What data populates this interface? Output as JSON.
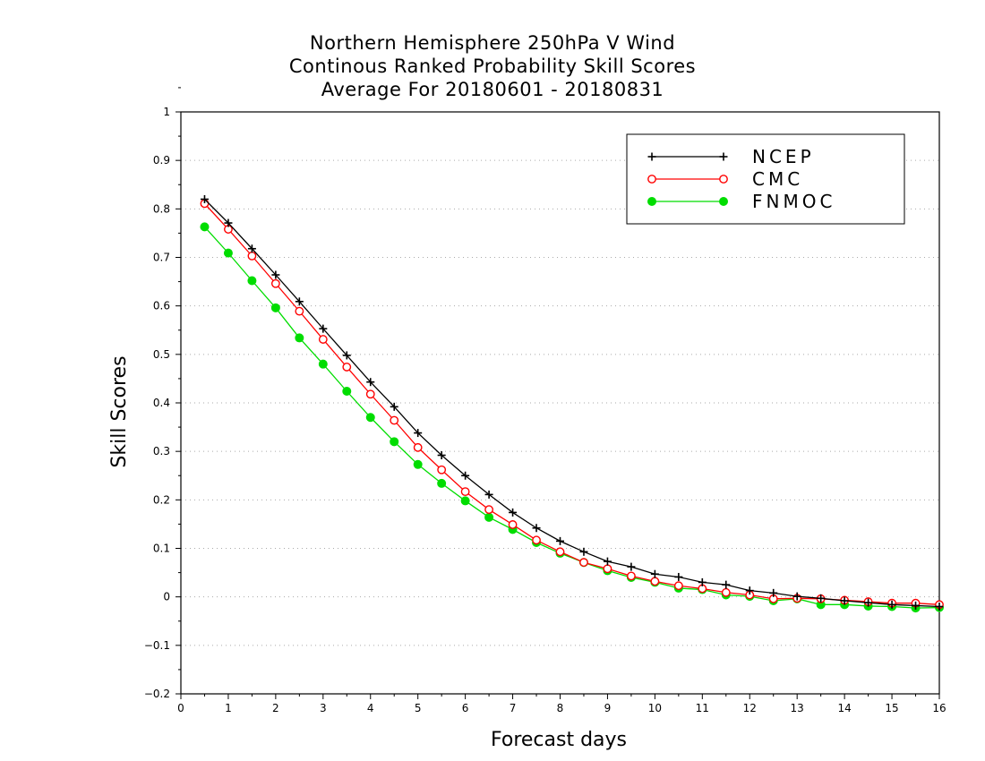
{
  "chart_data": {
    "type": "line",
    "title": [
      "Northern Hemisphere 250hPa V Wind",
      "Continous Ranked Probability Skill Scores",
      "Average For 20180601 - 20180831"
    ],
    "xlabel": "Forecast days",
    "ylabel": "Skill Scores",
    "xlim": [
      0,
      16
    ],
    "ylim": [
      -0.2,
      1
    ],
    "xticks": [
      "0",
      "1",
      "2",
      "3",
      "4",
      "5",
      "6",
      "7",
      "8",
      "9",
      "10",
      "11",
      "12",
      "13",
      "14",
      "15",
      "16"
    ],
    "yticks": [
      "−0.2",
      "−0.1",
      "0",
      "0.1",
      "0.2",
      "0.3",
      "0.4",
      "0.5",
      "0.6",
      "0.7",
      "0.8",
      "0.9",
      "1"
    ],
    "grid": "horizontal-dotted",
    "legend_position": "top-right",
    "x": [
      0.5,
      1,
      1.5,
      2,
      2.5,
      3,
      3.5,
      4,
      4.5,
      5,
      5.5,
      6,
      6.5,
      7,
      7.5,
      8,
      8.5,
      9,
      9.5,
      10,
      10.5,
      11,
      11.5,
      12,
      12.5,
      13,
      13.5,
      14,
      14.5,
      15,
      15.5,
      16
    ],
    "series": [
      {
        "name": "NCEP",
        "color": "#000000",
        "marker": "plus",
        "values": [
          0.82,
          0.771,
          0.718,
          0.664,
          0.609,
          0.553,
          0.498,
          0.443,
          0.392,
          0.338,
          0.292,
          0.25,
          0.211,
          0.174,
          0.142,
          0.115,
          0.093,
          0.073,
          0.062,
          0.047,
          0.041,
          0.03,
          0.025,
          0.013,
          0.008,
          0.001,
          -0.003,
          -0.008,
          -0.012,
          -0.016,
          -0.018,
          -0.02
        ]
      },
      {
        "name": "CMC",
        "color": "#ff0000",
        "marker": "open-circle",
        "values": [
          0.811,
          0.758,
          0.703,
          0.646,
          0.589,
          0.531,
          0.474,
          0.418,
          0.364,
          0.308,
          0.262,
          0.217,
          0.18,
          0.149,
          0.117,
          0.093,
          0.071,
          0.058,
          0.043,
          0.032,
          0.023,
          0.017,
          0.009,
          0.004,
          -0.004,
          -0.003,
          -0.004,
          -0.007,
          -0.01,
          -0.013,
          -0.013,
          -0.016
        ]
      },
      {
        "name": "FNMOC",
        "color": "#00dd00",
        "marker": "filled-circle",
        "values": [
          0.763,
          0.709,
          0.652,
          0.596,
          0.534,
          0.48,
          0.424,
          0.37,
          0.32,
          0.273,
          0.234,
          0.198,
          0.164,
          0.139,
          0.112,
          0.09,
          0.071,
          0.054,
          0.04,
          0.03,
          0.018,
          0.015,
          0.004,
          0.001,
          -0.008,
          -0.004,
          -0.016,
          -0.016,
          -0.019,
          -0.02,
          -0.023,
          -0.022
        ]
      }
    ]
  }
}
